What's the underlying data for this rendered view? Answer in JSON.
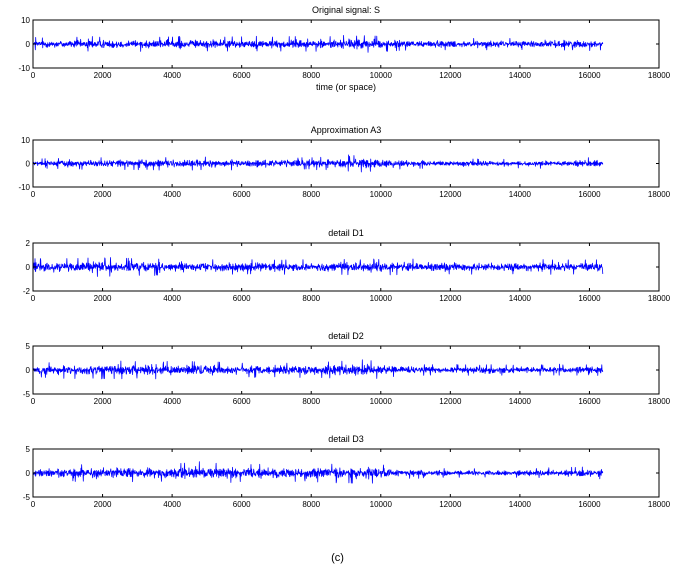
{
  "caption": "(c)",
  "colors": {
    "signal": "#0000ff",
    "axes": "#000000",
    "background": "#ffffff"
  },
  "chart_data": [
    {
      "type": "line",
      "title": "Original signal: S",
      "xlabel": "time (or space)",
      "ylabel": "",
      "xlim": [
        0,
        18000
      ],
      "ylim": [
        -10,
        10
      ],
      "xticks": [
        0,
        2000,
        4000,
        6000,
        8000,
        10000,
        12000,
        14000,
        16000,
        18000
      ],
      "xticklabels": [
        "0",
        "2000",
        "4000",
        "6000",
        "8000",
        "10000",
        "12000",
        "14000",
        "16000",
        "18000"
      ],
      "yticks": [
        -10,
        0,
        10
      ],
      "yticklabels": [
        "-10",
        "0",
        "10"
      ],
      "series": [
        {
          "n_samples": 16384,
          "mean": 0,
          "envelope_x": [
            0,
            1000,
            4000,
            6000,
            8000,
            9500,
            10500,
            12000,
            14000,
            16000,
            16384
          ],
          "envelope_y": [
            4,
            5,
            5,
            5,
            5,
            6,
            4.5,
            4,
            4,
            4.5,
            4
          ]
        }
      ]
    },
    {
      "type": "line",
      "title": "Approximation A3",
      "xlabel": "",
      "ylabel": "",
      "xlim": [
        0,
        18000
      ],
      "ylim": [
        -10,
        10
      ],
      "xticks": [
        0,
        2000,
        4000,
        6000,
        8000,
        10000,
        12000,
        14000,
        16000,
        18000
      ],
      "xticklabels": [
        "0",
        "2000",
        "4000",
        "6000",
        "8000",
        "10000",
        "12000",
        "14000",
        "16000",
        "18000"
      ],
      "yticks": [
        -10,
        0,
        10
      ],
      "yticklabels": [
        "-10",
        "0",
        "10"
      ],
      "series": [
        {
          "n_samples": 16384,
          "mean": 0,
          "envelope_x": [
            0,
            1000,
            4000,
            6000,
            8000,
            9500,
            10500,
            12000,
            14000,
            16000,
            16384
          ],
          "envelope_y": [
            3,
            4,
            4.5,
            4.5,
            4,
            6,
            4,
            3,
            3,
            4,
            3
          ]
        }
      ]
    },
    {
      "type": "line",
      "title": "detail D1",
      "xlabel": "",
      "ylabel": "",
      "xlim": [
        0,
        18000
      ],
      "ylim": [
        -2,
        2
      ],
      "xticks": [
        0,
        2000,
        4000,
        6000,
        8000,
        10000,
        12000,
        14000,
        16000,
        18000
      ],
      "xticklabels": [
        "0",
        "2000",
        "4000",
        "6000",
        "8000",
        "10000",
        "12000",
        "14000",
        "16000",
        "18000"
      ],
      "yticks": [
        -2,
        0,
        2
      ],
      "yticklabels": [
        "-2",
        "0",
        "2"
      ],
      "series": [
        {
          "n_samples": 16384,
          "mean": 0,
          "envelope_x": [
            0,
            2000,
            4000,
            6000,
            8000,
            10000,
            12000,
            14000,
            16000,
            16384
          ],
          "envelope_y": [
            1.1,
            1.3,
            1.1,
            1.0,
            1.0,
            1.1,
            1.0,
            1.0,
            1.0,
            1.0
          ]
        }
      ]
    },
    {
      "type": "line",
      "title": "detail D2",
      "xlabel": "",
      "ylabel": "",
      "xlim": [
        0,
        18000
      ],
      "ylim": [
        -5,
        5
      ],
      "xticks": [
        0,
        2000,
        4000,
        6000,
        8000,
        10000,
        12000,
        14000,
        16000,
        18000
      ],
      "xticklabels": [
        "0",
        "2000",
        "4000",
        "6000",
        "8000",
        "10000",
        "12000",
        "14000",
        "16000",
        "18000"
      ],
      "yticks": [
        -5,
        0,
        5
      ],
      "yticklabels": [
        "-5",
        "0",
        "5"
      ],
      "series": [
        {
          "n_samples": 16384,
          "mean": 0,
          "envelope_x": [
            0,
            2000,
            4000,
            6000,
            8000,
            9500,
            10500,
            12000,
            14000,
            16000,
            16384
          ],
          "envelope_y": [
            2.5,
            3,
            3,
            2.5,
            2.5,
            3.5,
            2,
            1.8,
            1.8,
            1.8,
            1.8
          ]
        }
      ]
    },
    {
      "type": "line",
      "title": "detail D3",
      "xlabel": "",
      "ylabel": "",
      "xlim": [
        0,
        18000
      ],
      "ylim": [
        -5,
        5
      ],
      "xticks": [
        0,
        2000,
        4000,
        6000,
        8000,
        10000,
        12000,
        14000,
        16000,
        18000
      ],
      "xticklabels": [
        "0",
        "2000",
        "4000",
        "6000",
        "8000",
        "10000",
        "12000",
        "14000",
        "16000",
        "18000"
      ],
      "yticks": [
        -5,
        0,
        5
      ],
      "yticklabels": [
        "-5",
        "0",
        "5"
      ],
      "series": [
        {
          "n_samples": 16384,
          "mean": 0,
          "envelope_x": [
            0,
            2000,
            4000,
            4600,
            6000,
            8000,
            9700,
            10500,
            12000,
            14000,
            16000,
            16384
          ],
          "envelope_y": [
            2.5,
            3,
            3,
            4,
            3,
            3,
            3.5,
            2,
            1.5,
            1.5,
            2,
            2
          ]
        }
      ]
    }
  ]
}
